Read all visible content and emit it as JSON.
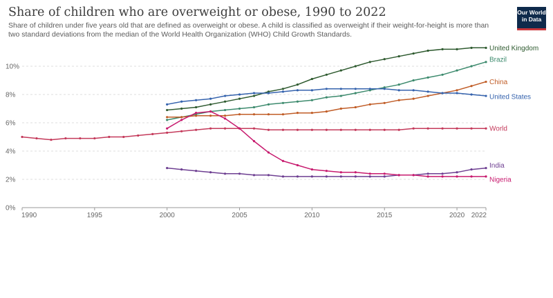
{
  "header": {
    "title": "Share of children who are overweight or obese, 1990 to 2022",
    "subtitle": "Share of children under five years old that are defined as overweight or obese. A child is classified as overweight if their weight-for-height is more than two standard deviations from the median of the World Health Organization (WHO) Child Growth Standards.",
    "logo_line1": "Our World",
    "logo_line2": "in Data"
  },
  "chart_data": {
    "type": "line",
    "title": "Share of children who are overweight or obese, 1990 to 2022",
    "xlim": [
      1990,
      2022
    ],
    "ylim": [
      0,
      12
    ],
    "x_ticks": [
      1990,
      1995,
      2000,
      2005,
      2010,
      2015,
      2020,
      2022
    ],
    "y_ticks": [
      0,
      2,
      4,
      6,
      8,
      10
    ],
    "y_tick_labels": [
      "0%",
      "2%",
      "4%",
      "6%",
      "8%",
      "10%"
    ],
    "grid": "horizontal dashed",
    "legend": "inline labels at line ends (right)",
    "series": [
      {
        "name": "United Kingdom",
        "color": "#2e5a2f",
        "points": [
          [
            2000,
            6.9
          ],
          [
            2001,
            7.0
          ],
          [
            2002,
            7.1
          ],
          [
            2003,
            7.3
          ],
          [
            2004,
            7.5
          ],
          [
            2005,
            7.7
          ],
          [
            2006,
            7.9
          ],
          [
            2007,
            8.2
          ],
          [
            2008,
            8.4
          ],
          [
            2009,
            8.7
          ],
          [
            2010,
            9.1
          ],
          [
            2011,
            9.4
          ],
          [
            2012,
            9.7
          ],
          [
            2013,
            10.0
          ],
          [
            2014,
            10.3
          ],
          [
            2015,
            10.5
          ],
          [
            2016,
            10.7
          ],
          [
            2017,
            10.9
          ],
          [
            2018,
            11.1
          ],
          [
            2019,
            11.2
          ],
          [
            2020,
            11.2
          ],
          [
            2021,
            11.3
          ],
          [
            2022,
            11.3
          ]
        ]
      },
      {
        "name": "Brazil",
        "color": "#3c8a6d",
        "points": [
          [
            2000,
            6.2
          ],
          [
            2001,
            6.4
          ],
          [
            2002,
            6.6
          ],
          [
            2003,
            6.8
          ],
          [
            2004,
            6.9
          ],
          [
            2005,
            7.0
          ],
          [
            2006,
            7.1
          ],
          [
            2007,
            7.3
          ],
          [
            2008,
            7.4
          ],
          [
            2009,
            7.5
          ],
          [
            2010,
            7.6
          ],
          [
            2011,
            7.8
          ],
          [
            2012,
            7.9
          ],
          [
            2013,
            8.1
          ],
          [
            2014,
            8.3
          ],
          [
            2015,
            8.5
          ],
          [
            2016,
            8.7
          ],
          [
            2017,
            9.0
          ],
          [
            2018,
            9.2
          ],
          [
            2019,
            9.4
          ],
          [
            2020,
            9.7
          ],
          [
            2021,
            10.0
          ],
          [
            2022,
            10.3
          ]
        ]
      },
      {
        "name": "China",
        "color": "#c05c26",
        "points": [
          [
            2000,
            6.4
          ],
          [
            2001,
            6.4
          ],
          [
            2002,
            6.5
          ],
          [
            2003,
            6.5
          ],
          [
            2004,
            6.5
          ],
          [
            2005,
            6.6
          ],
          [
            2006,
            6.6
          ],
          [
            2007,
            6.6
          ],
          [
            2008,
            6.6
          ],
          [
            2009,
            6.7
          ],
          [
            2010,
            6.7
          ],
          [
            2011,
            6.8
          ],
          [
            2012,
            7.0
          ],
          [
            2013,
            7.1
          ],
          [
            2014,
            7.3
          ],
          [
            2015,
            7.4
          ],
          [
            2016,
            7.6
          ],
          [
            2017,
            7.7
          ],
          [
            2018,
            7.9
          ],
          [
            2019,
            8.1
          ],
          [
            2020,
            8.3
          ],
          [
            2021,
            8.6
          ],
          [
            2022,
            8.9
          ]
        ]
      },
      {
        "name": "United States",
        "color": "#3462ad",
        "points": [
          [
            2000,
            7.3
          ],
          [
            2001,
            7.5
          ],
          [
            2002,
            7.6
          ],
          [
            2003,
            7.7
          ],
          [
            2004,
            7.9
          ],
          [
            2005,
            8.0
          ],
          [
            2006,
            8.1
          ],
          [
            2007,
            8.1
          ],
          [
            2008,
            8.2
          ],
          [
            2009,
            8.3
          ],
          [
            2010,
            8.3
          ],
          [
            2011,
            8.4
          ],
          [
            2012,
            8.4
          ],
          [
            2013,
            8.4
          ],
          [
            2014,
            8.4
          ],
          [
            2015,
            8.4
          ],
          [
            2016,
            8.3
          ],
          [
            2017,
            8.3
          ],
          [
            2018,
            8.2
          ],
          [
            2019,
            8.1
          ],
          [
            2020,
            8.1
          ],
          [
            2021,
            8.0
          ],
          [
            2022,
            7.9
          ]
        ]
      },
      {
        "name": "World",
        "color": "#c4395a",
        "points": [
          [
            1990,
            5.0
          ],
          [
            1991,
            4.9
          ],
          [
            1992,
            4.8
          ],
          [
            1993,
            4.9
          ],
          [
            1994,
            4.9
          ],
          [
            1995,
            4.9
          ],
          [
            1996,
            5.0
          ],
          [
            1997,
            5.0
          ],
          [
            1998,
            5.1
          ],
          [
            1999,
            5.2
          ],
          [
            2000,
            5.3
          ],
          [
            2001,
            5.4
          ],
          [
            2002,
            5.5
          ],
          [
            2003,
            5.6
          ],
          [
            2004,
            5.6
          ],
          [
            2005,
            5.6
          ],
          [
            2006,
            5.6
          ],
          [
            2007,
            5.5
          ],
          [
            2008,
            5.5
          ],
          [
            2009,
            5.5
          ],
          [
            2010,
            5.5
          ],
          [
            2011,
            5.5
          ],
          [
            2012,
            5.5
          ],
          [
            2013,
            5.5
          ],
          [
            2014,
            5.5
          ],
          [
            2015,
            5.5
          ],
          [
            2016,
            5.5
          ],
          [
            2017,
            5.6
          ],
          [
            2018,
            5.6
          ],
          [
            2019,
            5.6
          ],
          [
            2020,
            5.6
          ],
          [
            2021,
            5.6
          ],
          [
            2022,
            5.6
          ]
        ]
      },
      {
        "name": "India",
        "color": "#6d3e91",
        "points": [
          [
            2000,
            2.8
          ],
          [
            2001,
            2.7
          ],
          [
            2002,
            2.6
          ],
          [
            2003,
            2.5
          ],
          [
            2004,
            2.4
          ],
          [
            2005,
            2.4
          ],
          [
            2006,
            2.3
          ],
          [
            2007,
            2.3
          ],
          [
            2008,
            2.2
          ],
          [
            2009,
            2.2
          ],
          [
            2010,
            2.2
          ],
          [
            2011,
            2.2
          ],
          [
            2012,
            2.2
          ],
          [
            2013,
            2.2
          ],
          [
            2014,
            2.2
          ],
          [
            2015,
            2.2
          ],
          [
            2016,
            2.3
          ],
          [
            2017,
            2.3
          ],
          [
            2018,
            2.4
          ],
          [
            2019,
            2.4
          ],
          [
            2020,
            2.5
          ],
          [
            2021,
            2.7
          ],
          [
            2022,
            2.8
          ]
        ]
      },
      {
        "name": "Nigeria",
        "color": "#c71a6e",
        "points": [
          [
            2000,
            5.6
          ],
          [
            2001,
            6.2
          ],
          [
            2002,
            6.7
          ],
          [
            2003,
            6.8
          ],
          [
            2004,
            6.3
          ],
          [
            2005,
            5.6
          ],
          [
            2006,
            4.7
          ],
          [
            2007,
            3.9
          ],
          [
            2008,
            3.3
          ],
          [
            2009,
            3.0
          ],
          [
            2010,
            2.7
          ],
          [
            2011,
            2.6
          ],
          [
            2012,
            2.5
          ],
          [
            2013,
            2.5
          ],
          [
            2014,
            2.4
          ],
          [
            2015,
            2.4
          ],
          [
            2016,
            2.3
          ],
          [
            2017,
            2.3
          ],
          [
            2018,
            2.2
          ],
          [
            2019,
            2.2
          ],
          [
            2020,
            2.2
          ],
          [
            2021,
            2.2
          ],
          [
            2022,
            2.2
          ]
        ]
      }
    ]
  }
}
